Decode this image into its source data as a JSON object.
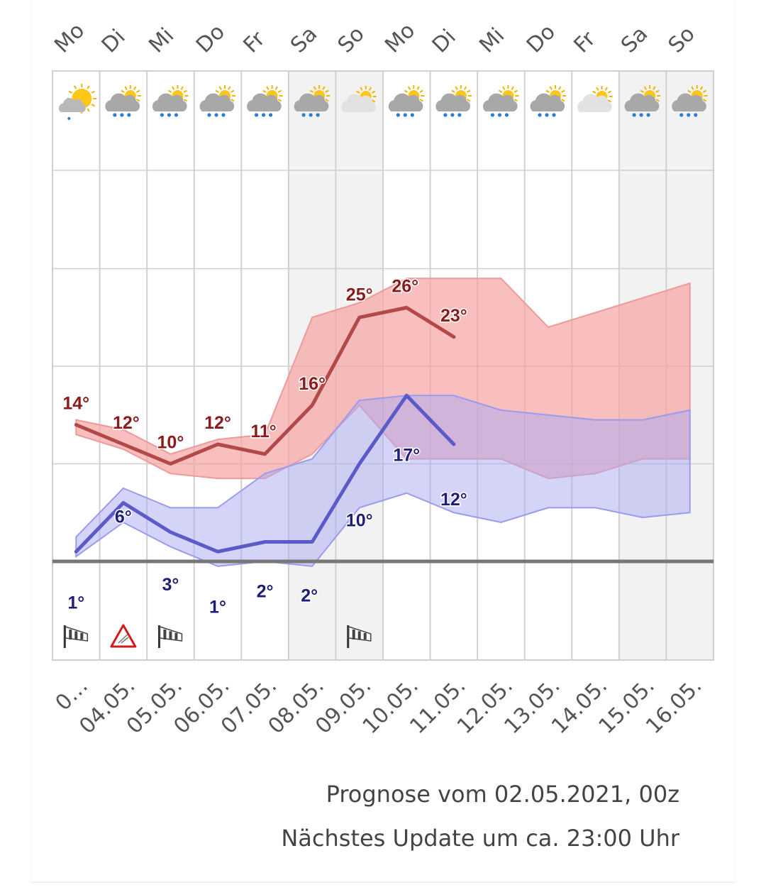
{
  "colors": {
    "max_line": "#b24848",
    "max_band": "#f7a2a2",
    "min_line": "#5a5ac8",
    "min_band": "#a9a9f4",
    "max_label": "#8b1a1a",
    "min_label": "#1e1e78",
    "zero_line": "#777777",
    "weekend_shade": "#f2f2f2",
    "grid": "#d0d0d0"
  },
  "chart_data": {
    "type": "line",
    "title": "",
    "weekdays": [
      "Mo",
      "Di",
      "Mi",
      "Do",
      "Fr",
      "Sa",
      "So",
      "Mo",
      "Di",
      "Mi",
      "Do",
      "Fr",
      "Sa",
      "So"
    ],
    "dates": [
      "0…",
      "04.05.",
      "05.05.",
      "06.05.",
      "07.05.",
      "08.05.",
      "09.05.",
      "10.05.",
      "11.05.",
      "12.05.",
      "13.05.",
      "14.05.",
      "15.05.",
      "16.05."
    ],
    "weekend_columns": [
      5,
      6,
      12,
      13
    ],
    "weather_icons": [
      "sun-cloud-drizzle-icon",
      "cloud-rain-icon",
      "cloud-rain-icon",
      "cloud-rain-icon",
      "cloud-rain-icon",
      "cloud-rain-icon",
      "cloud-icon",
      "cloud-rain-icon",
      "cloud-rain-icon",
      "cloud-rain-icon",
      "cloud-rain-icon",
      "cloud-icon",
      "cloud-rain-icon",
      "cloud-rain-icon"
    ],
    "y_unit": "°C",
    "ylim": [
      -10,
      40
    ],
    "grid": true,
    "series": [
      {
        "name": "",
        "role": "max",
        "values": [
          14,
          12,
          10,
          12,
          11,
          16,
          25,
          26,
          23,
          null,
          null,
          null,
          null,
          null
        ],
        "labels": [
          "14°",
          "12°",
          "10°",
          "12°",
          "11°",
          "16°",
          "25°",
          "26°",
          "23°",
          "",
          "",
          "",
          "",
          ""
        ],
        "band_low": [
          13,
          11.5,
          9,
          8.5,
          8.5,
          11,
          16,
          10.5,
          10.5,
          10.5,
          8.5,
          9,
          10.5,
          10.5
        ],
        "band_high": [
          14.5,
          13.5,
          11,
          12.5,
          13,
          25,
          26.5,
          29,
          29,
          29,
          24,
          25.5,
          27,
          28.5
        ]
      },
      {
        "name": "",
        "role": "min",
        "values": [
          1,
          6,
          3,
          1,
          2,
          2,
          10,
          17,
          12,
          null,
          null,
          null,
          null,
          null
        ],
        "labels": [
          "1°",
          "6°",
          "3°",
          "1°",
          "2°",
          "2°",
          "10°",
          "17°",
          "12°",
          "",
          "",
          "",
          "",
          ""
        ],
        "band_low": [
          0.5,
          4,
          1.5,
          -0.5,
          0,
          -0.5,
          5.5,
          7,
          5,
          4,
          5.5,
          5.5,
          4.5,
          5
        ],
        "band_high": [
          2.5,
          7.5,
          5.5,
          5.5,
          9,
          10.5,
          16.5,
          17,
          17,
          15.5,
          15,
          14.5,
          14.5,
          15.5
        ]
      }
    ],
    "markers": [
      {
        "column": 0,
        "icon": "windsock-icon"
      },
      {
        "column": 1,
        "icon": "warning-triangle-icon"
      },
      {
        "column": 2,
        "icon": "windsock-icon"
      },
      {
        "column": 6,
        "icon": "windsock-icon"
      }
    ]
  },
  "footer": {
    "prognose": "Prognose vom 02.05.2021, 00z",
    "update": "Nächstes Update um ca. 23:00 Uhr"
  }
}
